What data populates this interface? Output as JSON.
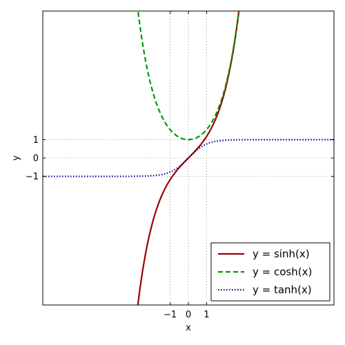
{
  "chart_data": {
    "type": "line",
    "title": "",
    "xlabel": "x",
    "ylabel": "y",
    "xlim": [
      -8,
      8
    ],
    "ylim": [
      -8,
      8
    ],
    "x_ticks": [
      -1,
      0,
      1
    ],
    "x_tick_labels": [
      "−1",
      "0",
      "1"
    ],
    "y_ticks": [
      -1,
      0,
      1
    ],
    "y_tick_labels": [
      "−1",
      "0",
      "1"
    ],
    "grid": "dotted lines at ticks",
    "legend_position": "bottom-right",
    "series": [
      {
        "name": "y = sinh(x)",
        "function": "sinh",
        "color": "#990000",
        "line_style": "solid",
        "x": [
          -2.75,
          -2.5,
          -2.25,
          -2,
          -1.75,
          -1.5,
          -1.25,
          -1,
          -0.75,
          -0.5,
          -0.25,
          0,
          0.25,
          0.5,
          0.75,
          1,
          1.25,
          1.5,
          1.75,
          2,
          2.25,
          2.5,
          2.75
        ],
        "y": [
          -7.8,
          -6.05,
          -4.69,
          -3.63,
          -2.79,
          -2.13,
          -1.6,
          -1.18,
          -0.82,
          -0.52,
          -0.25,
          0,
          0.25,
          0.52,
          0.82,
          1.18,
          1.6,
          2.13,
          2.79,
          3.63,
          4.69,
          6.05,
          7.8
        ]
      },
      {
        "name": "y = cosh(x)",
        "function": "cosh",
        "color": "#009900",
        "line_style": "dashed",
        "x": [
          -2.75,
          -2.5,
          -2.25,
          -2,
          -1.75,
          -1.5,
          -1.25,
          -1,
          -0.75,
          -0.5,
          -0.25,
          0,
          0.25,
          0.5,
          0.75,
          1,
          1.25,
          1.5,
          1.75,
          2,
          2.25,
          2.5,
          2.75
        ],
        "y": [
          7.86,
          6.13,
          4.8,
          3.76,
          2.96,
          2.35,
          1.89,
          1.54,
          1.29,
          1.13,
          1.03,
          1,
          1.03,
          1.13,
          1.29,
          1.54,
          1.89,
          2.35,
          2.96,
          3.76,
          4.8,
          6.13,
          7.86
        ]
      },
      {
        "name": "y = tanh(x)",
        "function": "tanh",
        "color": "#000099",
        "line_style": "dotted",
        "x": [
          -8,
          -6,
          -4,
          -3,
          -2,
          -1.5,
          -1,
          -0.5,
          0,
          0.5,
          1,
          1.5,
          2,
          3,
          4,
          6,
          8
        ],
        "y": [
          -1,
          -1,
          -0.999,
          -0.995,
          -0.964,
          -0.905,
          -0.762,
          -0.462,
          0,
          0.462,
          0.762,
          0.905,
          0.964,
          0.995,
          0.999,
          1,
          1
        ]
      }
    ]
  }
}
